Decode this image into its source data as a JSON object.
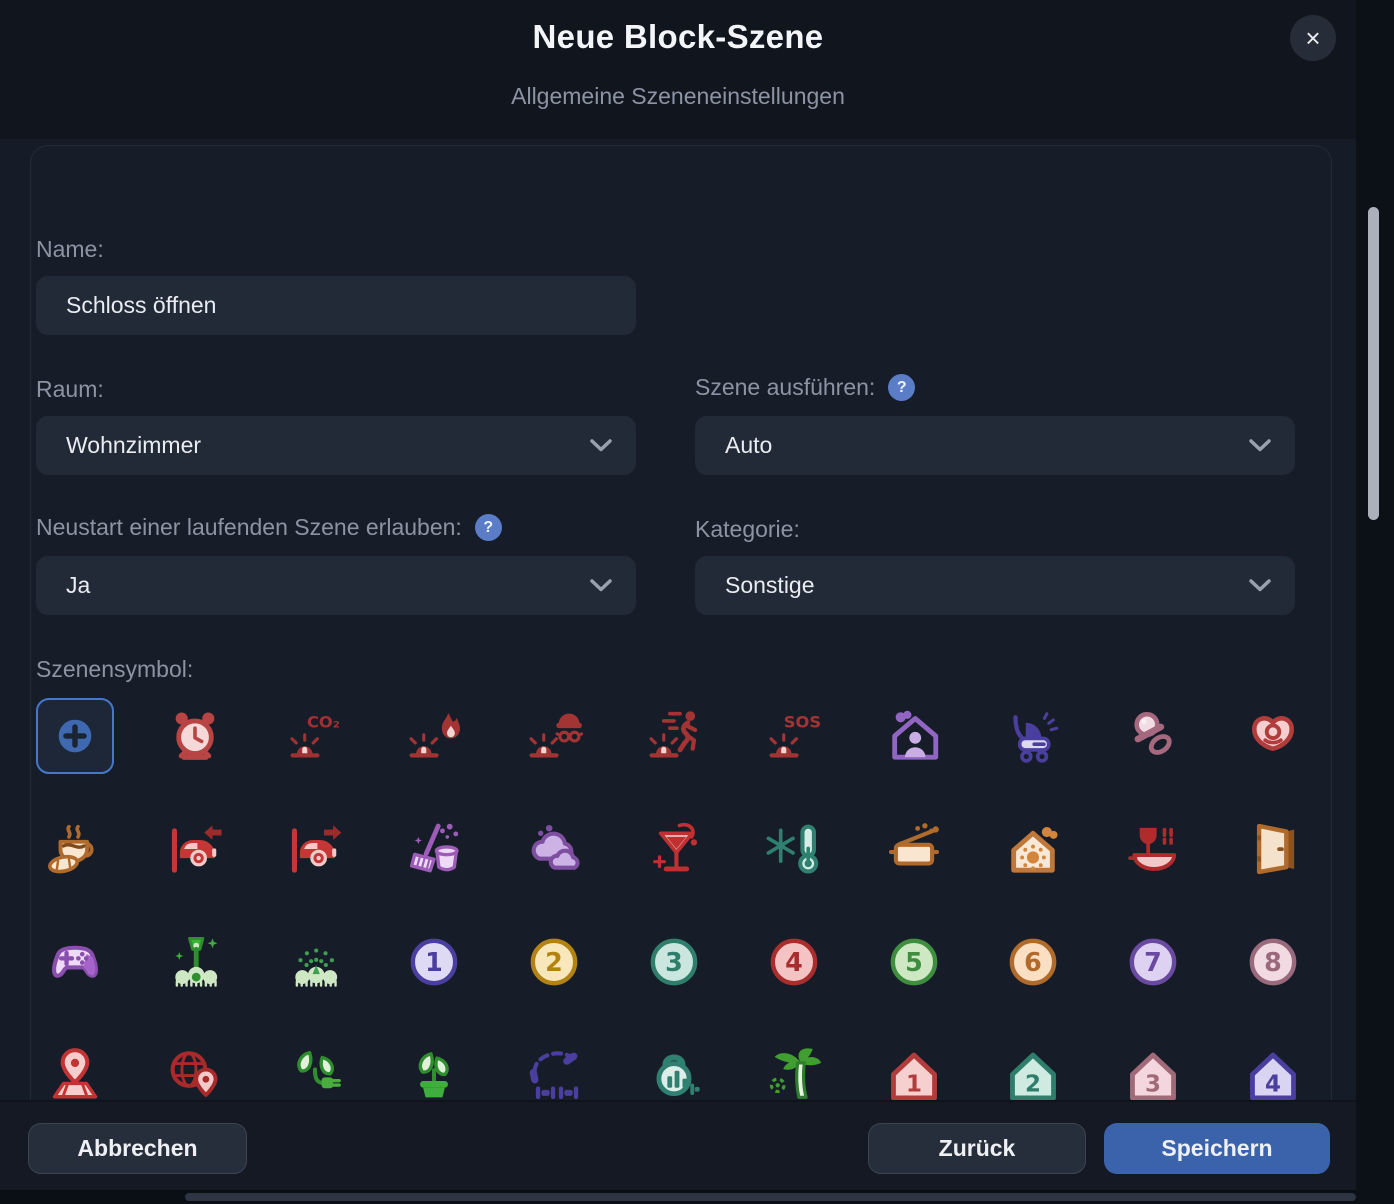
{
  "header": {
    "title": "Neue Block-Szene",
    "subtitle": "Allgemeine Szeneneinstellungen",
    "close_glyph": "×"
  },
  "form": {
    "name": {
      "label": "Name:",
      "value": "Schloss öffnen"
    },
    "room": {
      "label": "Raum:",
      "value": "Wohnzimmer"
    },
    "execute": {
      "label": "Szene ausführen:",
      "help_glyph": "?",
      "value": "Auto"
    },
    "restart": {
      "label": "Neustart einer laufenden Szene erlauben:",
      "help_glyph": "?",
      "value": "Ja"
    },
    "category": {
      "label": "Kategorie:",
      "value": "Sonstige"
    },
    "symbol_label": "Szenensymbol:"
  },
  "footer": {
    "cancel": "Abbrechen",
    "back": "Zurück",
    "save": "Speichern"
  },
  "colors": {
    "accent_blue": "#3b63ac",
    "help_blue": "#5b7cc7",
    "selected_border": "#4478cb"
  },
  "symbols": [
    {
      "name": "add-symbol",
      "type": "plus",
      "selected": true,
      "m": "#3e69b0",
      "l": "#4a7dcc",
      "a": "#1b2433"
    },
    {
      "name": "alarm-clock",
      "type": "clock",
      "m": "#b94444",
      "l": "#f6d8d8"
    },
    {
      "name": "co2-alarm",
      "type": "siren",
      "text": "CO₂",
      "m": "#9e3131",
      "l": "#f2d4d4"
    },
    {
      "name": "fire-alarm",
      "type": "siren-fire",
      "m": "#a33434",
      "l": "#f2d4d4"
    },
    {
      "name": "burglar-alarm",
      "type": "siren-burglar",
      "m": "#a33434",
      "l": "#f2d4d4"
    },
    {
      "name": "escape-alarm",
      "type": "siren-runner",
      "m": "#a33434",
      "l": "#f2d4d4"
    },
    {
      "name": "sos-alarm",
      "type": "siren",
      "text": "SOS",
      "m": "#a33434",
      "l": "#f2d4d4"
    },
    {
      "name": "presence-home",
      "type": "house-person",
      "m": "#9165c2",
      "l": "#c9aee6"
    },
    {
      "name": "baby-stroller",
      "type": "stroller",
      "m": "#4a3f9e",
      "l": "#dcd8f2"
    },
    {
      "name": "pacifier-side",
      "type": "pacifier-side",
      "m": "#a5697f",
      "l": "#f2dce4"
    },
    {
      "name": "pacifier",
      "type": "pacifier-front",
      "m": "#b03c3c",
      "l": "#f5cfcf"
    },
    {
      "name": "breakfast-coffee",
      "type": "coffee",
      "m": "#b06a2c",
      "l": "#f8e6d0",
      "a": "#7e4a1c"
    },
    {
      "name": "car-arriving",
      "type": "car-left",
      "m": "#c53636",
      "l": "#f2caca",
      "a": "#9e2b2b"
    },
    {
      "name": "car-leaving",
      "type": "car-right",
      "m": "#c53636",
      "l": "#f2caca",
      "a": "#9e2b2b"
    },
    {
      "name": "cleaning",
      "type": "cleaning",
      "m": "#9c5cb8",
      "l": "#eedaf6"
    },
    {
      "name": "weather-clouds",
      "type": "clouds",
      "m": "#7e4fa0",
      "l": "#cdb2e6"
    },
    {
      "name": "cocktail-party",
      "type": "cocktail",
      "m": "#c03030",
      "l": "#ecc0c0"
    },
    {
      "name": "frost-warning",
      "type": "frost",
      "m": "#2f8070",
      "l": "#d6ece6"
    },
    {
      "name": "cooking",
      "type": "pot",
      "m": "#b06a2c",
      "l": "#f8e6d0"
    },
    {
      "name": "warm-home",
      "type": "house-sun",
      "m": "#c0783a",
      "l": "#f8e8d8",
      "a": "#d2863c"
    },
    {
      "name": "dinner",
      "type": "dinner",
      "m": "#b02c2c",
      "l": "#f2c8c8"
    },
    {
      "name": "open-door",
      "type": "door",
      "m": "#b06a2c",
      "l": "#f5e2cc",
      "a": "#8a5420"
    },
    {
      "name": "gaming",
      "type": "gamepad",
      "m": "#8a4fae",
      "l": "#eed9f6",
      "a": "#a763cc"
    },
    {
      "name": "garden-light",
      "type": "garden-light",
      "m": "#2f8f2f",
      "l": "#cfe8c4",
      "a": "#3fae3f"
    },
    {
      "name": "irrigation",
      "type": "sprinkler",
      "m": "#3f9e4f",
      "l": "#cfe8c4",
      "a": "#3f9e4f"
    },
    {
      "name": "number-1",
      "type": "number",
      "text": "1",
      "m": "#4a3f9e",
      "l": "#dedaf4"
    },
    {
      "name": "number-2",
      "type": "number",
      "text": "2",
      "m": "#b28312",
      "l": "#f7e7ba"
    },
    {
      "name": "number-3",
      "type": "number",
      "text": "3",
      "m": "#2f7d6b",
      "l": "#cbe6de"
    },
    {
      "name": "number-4",
      "type": "number",
      "text": "4",
      "m": "#a82e2e",
      "l": "#f4c4c4"
    },
    {
      "name": "number-5",
      "type": "number",
      "text": "5",
      "m": "#3f8e3f",
      "l": "#cfe8c4"
    },
    {
      "name": "number-6",
      "type": "number",
      "text": "6",
      "m": "#b06a2c",
      "l": "#fadfc2"
    },
    {
      "name": "number-7",
      "type": "number",
      "text": "7",
      "m": "#6a4aa0",
      "l": "#ded2f2"
    },
    {
      "name": "number-8",
      "type": "number",
      "text": "8",
      "m": "#9a6a7c",
      "l": "#f2dae2"
    },
    {
      "name": "location-pin",
      "type": "pin-map",
      "m": "#c23434",
      "l": "#f5cece"
    },
    {
      "name": "geo-location",
      "type": "globe-pin",
      "m": "#a82a2a",
      "l": "#f2caca"
    },
    {
      "name": "energy-plant",
      "type": "plant-plug",
      "m": "#2f8f2f",
      "l": "#e2f2da",
      "a": "#4aae3f"
    },
    {
      "name": "houseplant",
      "type": "potted-plant",
      "m": "#2f8f2f",
      "l": "#e2f2da",
      "a": "#3fae3f"
    },
    {
      "name": "fitness-rope",
      "type": "jump-rope",
      "m": "#4a3f9e",
      "l": "#6a5fbe"
    },
    {
      "name": "workout-kettlebell",
      "type": "kettlebell",
      "m": "#2f8070",
      "l": "#ddeee8"
    },
    {
      "name": "vacation-palm",
      "type": "palm",
      "m": "#2f7d2f",
      "l": "#e8f4e0",
      "a": "#3f9e2f"
    },
    {
      "name": "home-1",
      "type": "house-number",
      "text": "1",
      "m": "#b23c3c",
      "l": "#f6cfcf"
    },
    {
      "name": "home-2",
      "type": "house-number",
      "text": "2",
      "m": "#2f7d6b",
      "l": "#cfeae0"
    },
    {
      "name": "home-3",
      "type": "house-number",
      "text": "3",
      "m": "#a06a78",
      "l": "#f4d6de"
    },
    {
      "name": "home-4",
      "type": "house-number",
      "text": "4",
      "m": "#4a3f9e",
      "l": "#d8d4f2"
    }
  ]
}
